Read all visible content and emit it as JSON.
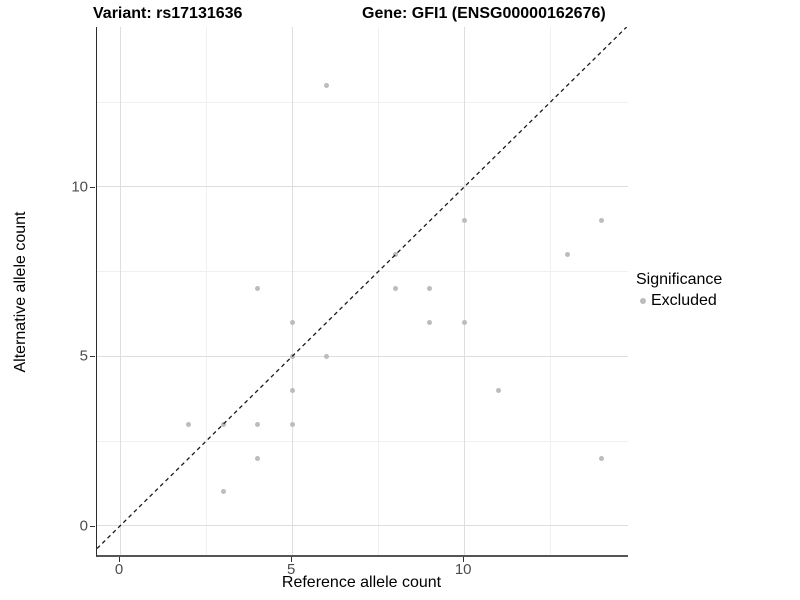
{
  "titles": {
    "variant": "Variant: rs17131636",
    "gene": "Gene: GFI1 (ENSG00000162676)"
  },
  "axes": {
    "x_label": "Reference allele count",
    "y_label": "Alternative allele count",
    "x_ticks": [
      "0",
      "5",
      "10"
    ],
    "y_ticks": [
      "0",
      "5",
      "10"
    ]
  },
  "legend": {
    "title": "Significance",
    "items": [
      {
        "label": "Excluded",
        "color": "#bcbcbc"
      }
    ]
  },
  "colors": {
    "point": "#bcbcbc",
    "identity_line": "#1a1a1a",
    "grid_major": "#dedede",
    "grid_minor": "#f0f0f0",
    "tick_label": "#4d4d4d"
  },
  "chart_data": {
    "type": "scatter",
    "title": "Variant: rs17131636 — Gene: GFI1 (ENSG00000162676)",
    "xlabel": "Reference allele count",
    "ylabel": "Alternative allele count",
    "xlim": [
      -0.67,
      14.76
    ],
    "ylim": [
      -0.86,
      14.72
    ],
    "x_tick_values": [
      0,
      5,
      10
    ],
    "y_tick_values": [
      0,
      5,
      10
    ],
    "x_minor_gridlines": [
      2.5,
      7.5,
      12.5
    ],
    "y_minor_gridlines": [
      2.5,
      7.5,
      12.5
    ],
    "grid": true,
    "legend_position": "right",
    "reference_line": {
      "type": "identity",
      "slope": 1,
      "intercept": 0,
      "style": "dashed",
      "color": "#1a1a1a"
    },
    "series": [
      {
        "name": "Excluded",
        "color": "#bcbcbc",
        "points": [
          [
            2,
            3
          ],
          [
            3,
            1
          ],
          [
            3,
            3
          ],
          [
            4,
            2
          ],
          [
            4,
            3
          ],
          [
            4,
            7
          ],
          [
            5,
            3
          ],
          [
            5,
            4
          ],
          [
            5,
            5
          ],
          [
            5,
            6
          ],
          [
            6,
            5
          ],
          [
            6,
            13
          ],
          [
            8,
            7
          ],
          [
            8,
            8
          ],
          [
            9,
            6
          ],
          [
            9,
            7
          ],
          [
            10,
            6
          ],
          [
            10,
            9
          ],
          [
            11,
            4
          ],
          [
            13,
            8
          ],
          [
            14,
            2
          ],
          [
            14,
            9
          ]
        ]
      }
    ]
  }
}
